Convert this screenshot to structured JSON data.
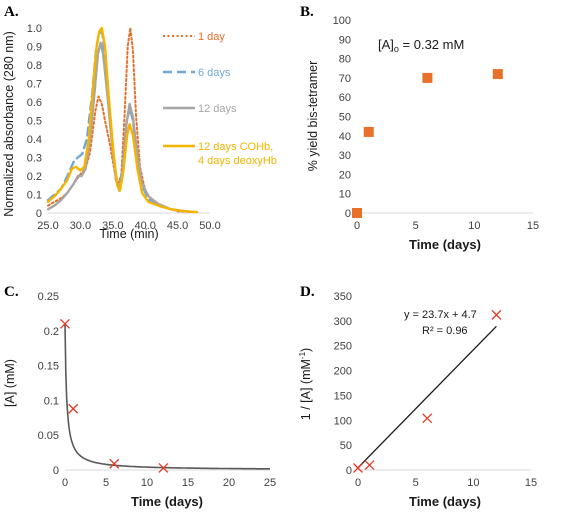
{
  "chart_data": [
    {
      "panel": "A.",
      "type": "line",
      "xlabel": "Time (min)",
      "ylabel": "Normalized absorbance (280 nm)",
      "xlim": [
        25.0,
        50.0
      ],
      "ylim": [
        0,
        1.0
      ],
      "xticks": [
        "25.0",
        "30.0",
        "35.0",
        "40.0",
        "45.0",
        "50.0"
      ],
      "yticks": [
        "0",
        "0.1",
        "0.2",
        "0.3",
        "0.4",
        "0.5",
        "0.6",
        "0.7",
        "0.8",
        "0.9",
        "1.0"
      ],
      "legend_position": "right",
      "series": [
        {
          "name": "1 day",
          "color": "#e86f2a",
          "style": "dotted",
          "points": [
            [
              25,
              0.04
            ],
            [
              27,
              0.08
            ],
            [
              28,
              0.11
            ],
            [
              29,
              0.16
            ],
            [
              30,
              0.21
            ],
            [
              30.8,
              0.24
            ],
            [
              31.5,
              0.33
            ],
            [
              32.3,
              0.55
            ],
            [
              32.8,
              0.63
            ],
            [
              33.3,
              0.59
            ],
            [
              33.8,
              0.5
            ],
            [
              34.5,
              0.38
            ],
            [
              35.3,
              0.22
            ],
            [
              35.8,
              0.16
            ],
            [
              36.3,
              0.2
            ],
            [
              36.8,
              0.52
            ],
            [
              37.3,
              0.9
            ],
            [
              37.7,
              1.0
            ],
            [
              38.1,
              0.88
            ],
            [
              38.6,
              0.52
            ],
            [
              39.2,
              0.25
            ],
            [
              40,
              0.12
            ],
            [
              41,
              0.07
            ],
            [
              43,
              0.03
            ],
            [
              45,
              0.01
            ],
            [
              47,
              0.005
            ]
          ]
        },
        {
          "name": "6 days",
          "color": "#6fa8d6",
          "style": "dashed",
          "points": [
            [
              25,
              0.07
            ],
            [
              27,
              0.13
            ],
            [
              28,
              0.2
            ],
            [
              29,
              0.28
            ],
            [
              29.6,
              0.3
            ],
            [
              30.3,
              0.32
            ],
            [
              31,
              0.4
            ],
            [
              31.8,
              0.64
            ],
            [
              32.4,
              0.88
            ],
            [
              32.9,
              0.98
            ],
            [
              33.4,
              0.97
            ],
            [
              34,
              0.76
            ],
            [
              34.8,
              0.42
            ],
            [
              35.5,
              0.18
            ],
            [
              36,
              0.13
            ],
            [
              36.5,
              0.24
            ],
            [
              37.1,
              0.48
            ],
            [
              37.6,
              0.57
            ],
            [
              38.1,
              0.5
            ],
            [
              38.8,
              0.3
            ],
            [
              39.6,
              0.14
            ],
            [
              40.6,
              0.07
            ],
            [
              42,
              0.04
            ],
            [
              44,
              0.02
            ],
            [
              46,
              0.01
            ],
            [
              48,
              0.005
            ]
          ]
        },
        {
          "name": "12 days",
          "color": "#a6a6a6",
          "style": "solid",
          "points": [
            [
              25,
              0.02
            ],
            [
              26,
              0.04
            ],
            [
              27,
              0.07
            ],
            [
              28,
              0.11
            ],
            [
              29,
              0.16
            ],
            [
              29.6,
              0.2
            ],
            [
              30.2,
              0.2
            ],
            [
              30.8,
              0.24
            ],
            [
              31.5,
              0.4
            ],
            [
              32.1,
              0.62
            ],
            [
              32.7,
              0.86
            ],
            [
              33.1,
              0.92
            ],
            [
              33.5,
              0.86
            ],
            [
              34.1,
              0.66
            ],
            [
              34.8,
              0.4
            ],
            [
              35.5,
              0.18
            ],
            [
              36,
              0.12
            ],
            [
              36.5,
              0.22
            ],
            [
              37.1,
              0.48
            ],
            [
              37.6,
              0.59
            ],
            [
              38.1,
              0.52
            ],
            [
              38.8,
              0.31
            ],
            [
              39.5,
              0.16
            ],
            [
              40.5,
              0.09
            ],
            [
              42,
              0.05
            ],
            [
              44,
              0.02
            ],
            [
              46,
              0.01
            ]
          ]
        },
        {
          "name": "12 days COHb, 4 days deoxyHb",
          "legend_lines": [
            "12 days COHb,",
            "4 days deoxyHb"
          ],
          "color": "#f5b400",
          "style": "solid",
          "points": [
            [
              25,
              0.06
            ],
            [
              26,
              0.09
            ],
            [
              27,
              0.13
            ],
            [
              28,
              0.18
            ],
            [
              28.7,
              0.24
            ],
            [
              29.3,
              0.25
            ],
            [
              30,
              0.23
            ],
            [
              30.6,
              0.25
            ],
            [
              31.3,
              0.4
            ],
            [
              32,
              0.7
            ],
            [
              32.5,
              0.9
            ],
            [
              32.9,
              0.98
            ],
            [
              33.3,
              1.0
            ],
            [
              33.8,
              0.9
            ],
            [
              34.4,
              0.62
            ],
            [
              35.1,
              0.33
            ],
            [
              35.7,
              0.15
            ],
            [
              36.1,
              0.12
            ],
            [
              36.6,
              0.22
            ],
            [
              37.2,
              0.42
            ],
            [
              37.6,
              0.48
            ],
            [
              38.1,
              0.42
            ],
            [
              38.8,
              0.24
            ],
            [
              39.5,
              0.11
            ],
            [
              40.5,
              0.06
            ],
            [
              42,
              0.04
            ],
            [
              44,
              0.02
            ],
            [
              46,
              0.01
            ],
            [
              48,
              0.005
            ]
          ]
        }
      ]
    },
    {
      "panel": "B.",
      "type": "scatter",
      "xlabel": "Time (days)",
      "ylabel": "% yield bis-tetramer",
      "xlim": [
        0,
        15
      ],
      "ylim": [
        0,
        100
      ],
      "xticks": [
        "0",
        "5",
        "10",
        "15"
      ],
      "yticks": [
        "0",
        "10",
        "20",
        "30",
        "40",
        "50",
        "60",
        "70",
        "80",
        "90",
        "100"
      ],
      "annotation": {
        "main": "[A]",
        "sub": "o",
        "rest": " = 0.32 mM"
      },
      "series": [
        {
          "color": "#e8702a",
          "marker": "square",
          "points": [
            [
              0,
              0
            ],
            [
              1,
              42
            ],
            [
              6,
              70
            ],
            [
              12,
              72
            ]
          ]
        }
      ]
    },
    {
      "panel": "C.",
      "type": "scatter",
      "xlabel": "Time (days)",
      "ylabel": "[A] (mM)",
      "xlim": [
        0,
        25
      ],
      "ylim": [
        0,
        0.25
      ],
      "xticks": [
        "0",
        "5",
        "10",
        "15",
        "20",
        "25"
      ],
      "yticks": [
        "0",
        "0.05",
        "0.1",
        "0.15",
        "0.2",
        "0.25"
      ],
      "series": [
        {
          "color": "#e03c28",
          "marker": "x",
          "points": [
            [
              0,
              0.21
            ],
            [
              1,
              0.088
            ],
            [
              6,
              0.009
            ],
            [
              12,
              0.003
            ]
          ]
        }
      ],
      "fit": {
        "color": "#595959",
        "form": "A0/(1+A0*k*t)",
        "A0": 0.21,
        "k": 23.7
      }
    },
    {
      "panel": "D.",
      "type": "scatter",
      "xlabel": "Time (days)",
      "ylabel": "1 / [A] (mM⁻¹)",
      "ylabel_main": "1 / [A] (mM",
      "ylabel_sup": "-1",
      "ylabel_end": ")",
      "xlim": [
        0,
        15
      ],
      "ylim": [
        0,
        350
      ],
      "xticks": [
        "0",
        "5",
        "10",
        "15"
      ],
      "yticks": [
        "0",
        "50",
        "100",
        "150",
        "200",
        "250",
        "300",
        "350"
      ],
      "equation": "y = 23.7x + 4.7",
      "r2": "R² = 0.96",
      "series": [
        {
          "color": "#e03c28",
          "marker": "x",
          "points": [
            [
              0,
              4
            ],
            [
              1,
              10
            ],
            [
              6,
              104
            ],
            [
              12,
              312
            ]
          ]
        }
      ],
      "fit": {
        "color": "#1a1a1a",
        "slope": 23.7,
        "intercept": 4.7,
        "x_range": [
          0,
          12
        ]
      }
    }
  ]
}
